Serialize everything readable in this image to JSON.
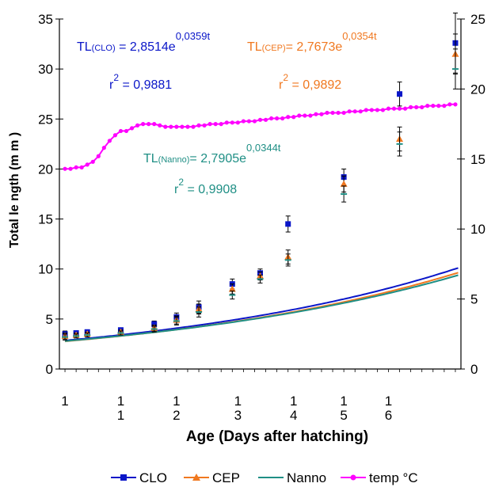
{
  "chart_data": {
    "type": "scatter",
    "xlabel": "Age (Days after hatching)",
    "ylabel": "Total le ngth (m m   )",
    "x_tick_labels": [
      {
        "x": 0,
        "top": "1",
        "bottom": ""
      },
      {
        "x": 5,
        "top": "1",
        "bottom": "1"
      },
      {
        "x": 10,
        "top": "1",
        "bottom": "2"
      },
      {
        "x": 15.5,
        "top": "1",
        "bottom": "3"
      },
      {
        "x": 20.5,
        "top": "1",
        "bottom": "4"
      },
      {
        "x": 25,
        "top": "1",
        "bottom": "5"
      },
      {
        "x": 29,
        "top": "1",
        "bottom": "6"
      }
    ],
    "xlim": [
      -0.5,
      35.5
    ],
    "left_axis": {
      "ticks": [
        {
          "label": "0",
          "value": 0
        },
        {
          "label": "5",
          "value": 5
        },
        {
          "label": "10",
          "value": 10
        },
        {
          "label": "15",
          "value": 15
        },
        {
          "label": "20",
          "value": 20
        },
        {
          "label": "25",
          "value": 25
        },
        {
          "label": "30",
          "value": 30
        },
        {
          "label": "35",
          "value": 35
        }
      ]
    },
    "right_axis": {
      "label": "temp °C",
      "ylim": [
        0,
        25
      ],
      "ticks": [
        "0",
        "5",
        "10",
        "15",
        "20",
        "25"
      ]
    },
    "ylim": [
      0,
      35
    ],
    "series": [
      {
        "name": "CLO",
        "color": "#0a16c8",
        "marker": "square",
        "axis": "left",
        "points": [
          {
            "x": 0,
            "y": 3.5,
            "err": 0.3
          },
          {
            "x": 1,
            "y": 3.6,
            "err": 0.2
          },
          {
            "x": 2,
            "y": 3.7,
            "err": 0.2
          },
          {
            "x": 5,
            "y": 3.9,
            "err": 0.2
          },
          {
            "x": 8,
            "y": 4.5,
            "err": 0.3
          },
          {
            "x": 10,
            "y": 5.2,
            "err": 0.4
          },
          {
            "x": 12,
            "y": 6.2,
            "err": 0.6
          },
          {
            "x": 15,
            "y": 8.5,
            "err": 0.5
          },
          {
            "x": 17.5,
            "y": 9.6,
            "err": 0.4
          },
          {
            "x": 20,
            "y": 14.5,
            "err": 0.8
          },
          {
            "x": 25,
            "y": 19.2,
            "err": 0.8
          },
          {
            "x": 30,
            "y": 27.5,
            "err": 1.2
          },
          {
            "x": 35,
            "y": 32.6,
            "err": 3.0
          }
        ],
        "fit": {
          "a": 2.8514,
          "b": 0.0359
        }
      },
      {
        "name": "CEP",
        "color": "#f07820",
        "marker": "triangle",
        "axis": "left",
        "points": [
          {
            "x": 0,
            "y": 3.3,
            "err": 0.3
          },
          {
            "x": 1,
            "y": 3.4,
            "err": 0.2
          },
          {
            "x": 2,
            "y": 3.5,
            "err": 0.2
          },
          {
            "x": 5,
            "y": 3.7,
            "err": 0.2
          },
          {
            "x": 8,
            "y": 4.1,
            "err": 0.3
          },
          {
            "x": 10,
            "y": 4.9,
            "err": 0.4
          },
          {
            "x": 12,
            "y": 6.0,
            "err": 0.5
          },
          {
            "x": 15,
            "y": 8.0,
            "err": 0.5
          },
          {
            "x": 17.5,
            "y": 9.3,
            "err": 0.4
          },
          {
            "x": 20,
            "y": 11.2,
            "err": 0.7
          },
          {
            "x": 25,
            "y": 18.5,
            "err": 0.8
          },
          {
            "x": 30,
            "y": 23.0,
            "err": 1.2
          },
          {
            "x": 35,
            "y": 31.5,
            "err": 2.0
          }
        ],
        "fit": {
          "a": 2.7673,
          "b": 0.0354
        }
      },
      {
        "name": "Nanno",
        "color": "#1f8f85",
        "marker": "dash",
        "axis": "left",
        "points": [
          {
            "x": 0,
            "y": 3.2,
            "err": 0.3
          },
          {
            "x": 1,
            "y": 3.3,
            "err": 0.2
          },
          {
            "x": 2,
            "y": 3.4,
            "err": 0.2
          },
          {
            "x": 5,
            "y": 3.6,
            "err": 0.2
          },
          {
            "x": 8,
            "y": 4.0,
            "err": 0.3
          },
          {
            "x": 10,
            "y": 4.8,
            "err": 0.4
          },
          {
            "x": 12,
            "y": 5.7,
            "err": 0.5
          },
          {
            "x": 15,
            "y": 7.4,
            "err": 0.4
          },
          {
            "x": 17.5,
            "y": 9.0,
            "err": 0.4
          },
          {
            "x": 20,
            "y": 10.9,
            "err": 0.6
          },
          {
            "x": 25,
            "y": 17.5,
            "err": 0.8
          },
          {
            "x": 30,
            "y": 22.5,
            "err": 1.2
          },
          {
            "x": 35,
            "y": 30.0,
            "err": 2.0
          }
        ],
        "fit": {
          "a": 2.7905,
          "b": 0.0344
        }
      },
      {
        "name": "temp °C",
        "color": "#ff00ff",
        "marker": "dot",
        "axis": "right",
        "x_start": 0,
        "x_step": 0.5,
        "values": [
          14.3,
          14.3,
          14.4,
          14.4,
          14.6,
          14.8,
          15.2,
          15.8,
          16.3,
          16.7,
          17.0,
          17.0,
          17.2,
          17.4,
          17.5,
          17.5,
          17.5,
          17.4,
          17.3,
          17.3,
          17.3,
          17.3,
          17.3,
          17.3,
          17.4,
          17.4,
          17.5,
          17.5,
          17.5,
          17.6,
          17.6,
          17.6,
          17.7,
          17.7,
          17.7,
          17.8,
          17.8,
          17.9,
          17.9,
          17.9,
          18.0,
          18.0,
          18.1,
          18.1,
          18.1,
          18.2,
          18.2,
          18.3,
          18.3,
          18.3,
          18.3,
          18.4,
          18.4,
          18.4,
          18.5,
          18.5,
          18.5,
          18.5,
          18.6,
          18.6,
          18.6,
          18.6,
          18.7,
          18.7,
          18.7,
          18.8,
          18.8,
          18.8,
          18.8,
          18.9,
          18.9
        ]
      }
    ],
    "annotations": [
      {
        "series": "CLO",
        "color": "#0a16c8",
        "prefix": "TL",
        "sub": "(CLO)",
        "mid": " = 2,8514e",
        "sup": "0,0359t",
        "r2": " = 0,9881"
      },
      {
        "series": "CEP",
        "color": "#f07820",
        "prefix": "TL",
        "sub": "(CEP)",
        "mid": "= 2,7673e",
        "sup": "0,0354t",
        "r2": " = 0,9892"
      },
      {
        "series": "Nanno",
        "color": "#1f8f85",
        "prefix": "TL",
        "sub": "(Nanno)",
        "mid": "= 2,7905e",
        "sup": "0,0344t",
        "r2": " = 0,9908"
      }
    ],
    "r_label": "r",
    "r_sup": "2",
    "legend_placement": "bottom",
    "grid": false
  }
}
